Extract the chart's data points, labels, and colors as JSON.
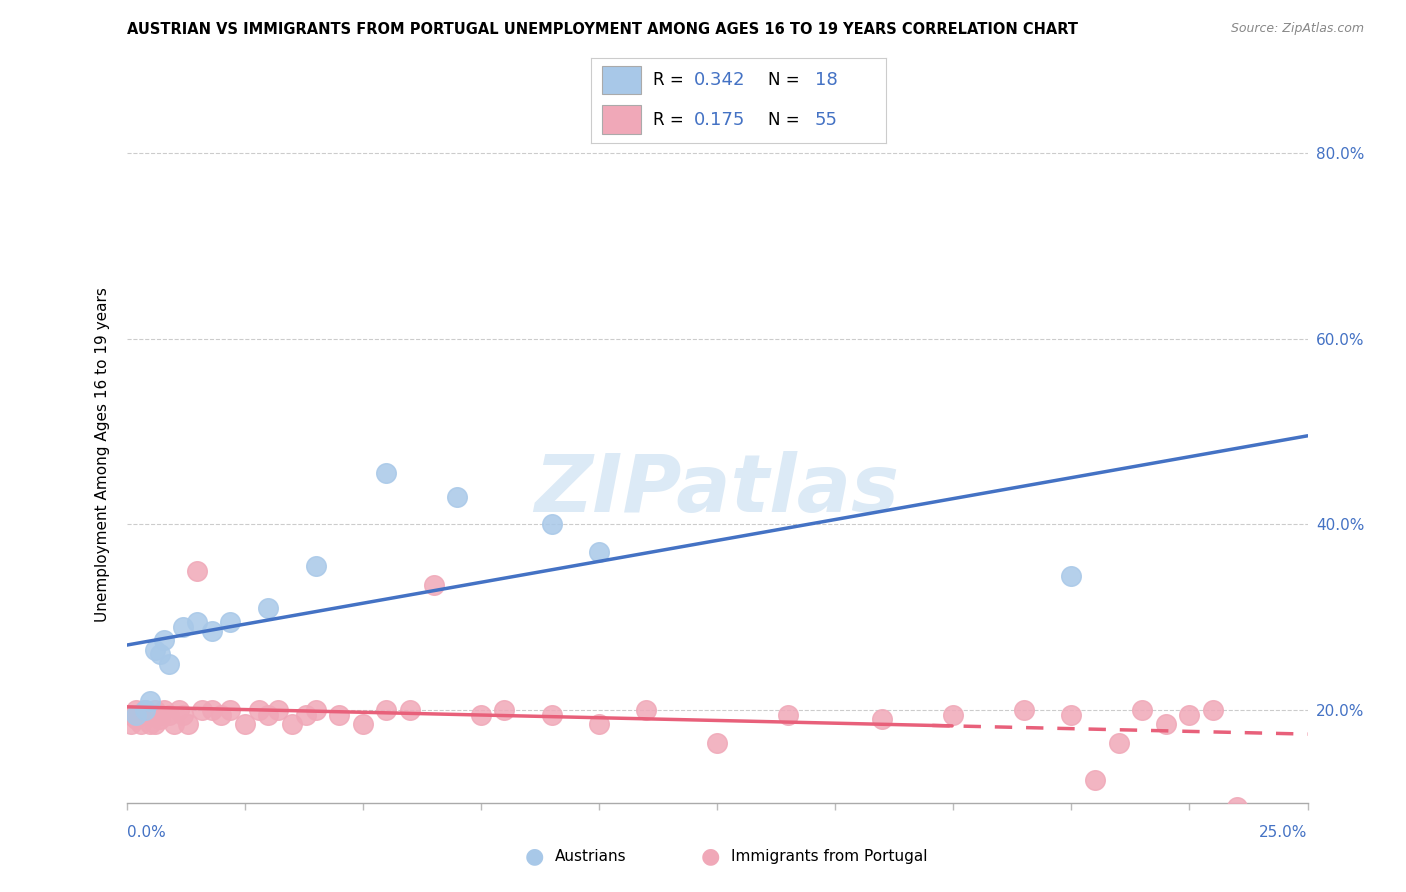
{
  "title": "AUSTRIAN VS IMMIGRANTS FROM PORTUGAL UNEMPLOYMENT AMONG AGES 16 TO 19 YEARS CORRELATION CHART",
  "source": "Source: ZipAtlas.com",
  "ylabel": "Unemployment Among Ages 16 to 19 years",
  "legend1_R": "0.342",
  "legend1_N": "18",
  "legend2_R": "0.175",
  "legend2_N": "55",
  "austrians_color": "#A8C8E8",
  "portugal_color": "#F0A8B8",
  "regression_blue": "#4472C4",
  "regression_pink": "#E8607A",
  "austrians_x": [
    0.002,
    0.004,
    0.005,
    0.006,
    0.007,
    0.008,
    0.009,
    0.012,
    0.015,
    0.018,
    0.022,
    0.03,
    0.04,
    0.055,
    0.07,
    0.09,
    0.1,
    0.2
  ],
  "austrians_y": [
    0.195,
    0.2,
    0.21,
    0.265,
    0.26,
    0.275,
    0.25,
    0.29,
    0.295,
    0.285,
    0.295,
    0.31,
    0.355,
    0.455,
    0.43,
    0.4,
    0.37,
    0.345
  ],
  "portugal_x": [
    0.001,
    0.001,
    0.002,
    0.002,
    0.003,
    0.003,
    0.004,
    0.004,
    0.005,
    0.005,
    0.006,
    0.006,
    0.007,
    0.007,
    0.008,
    0.009,
    0.01,
    0.011,
    0.012,
    0.013,
    0.015,
    0.016,
    0.018,
    0.02,
    0.022,
    0.025,
    0.028,
    0.03,
    0.032,
    0.035,
    0.038,
    0.04,
    0.045,
    0.05,
    0.055,
    0.06,
    0.065,
    0.075,
    0.08,
    0.09,
    0.1,
    0.11,
    0.125,
    0.14,
    0.16,
    0.175,
    0.19,
    0.2,
    0.205,
    0.21,
    0.215,
    0.22,
    0.225,
    0.23,
    0.235
  ],
  "portugal_y": [
    0.195,
    0.185,
    0.2,
    0.19,
    0.195,
    0.185,
    0.2,
    0.195,
    0.185,
    0.195,
    0.2,
    0.185,
    0.19,
    0.195,
    0.2,
    0.195,
    0.185,
    0.2,
    0.195,
    0.185,
    0.35,
    0.2,
    0.2,
    0.195,
    0.2,
    0.185,
    0.2,
    0.195,
    0.2,
    0.185,
    0.195,
    0.2,
    0.195,
    0.185,
    0.2,
    0.2,
    0.335,
    0.195,
    0.2,
    0.195,
    0.185,
    0.2,
    0.165,
    0.195,
    0.19,
    0.195,
    0.2,
    0.195,
    0.125,
    0.165,
    0.2,
    0.185,
    0.195,
    0.2,
    0.095
  ],
  "xlim": [
    0.0,
    0.25
  ],
  "ylim": [
    0.1,
    0.85
  ],
  "right_yticks": [
    0.2,
    0.4,
    0.6,
    0.8
  ],
  "right_yticklabels": [
    "20.0%",
    "40.0%",
    "60.0%",
    "80.0%"
  ],
  "watermark": "ZIPatlas",
  "fig_width": 14.06,
  "fig_height": 8.92
}
